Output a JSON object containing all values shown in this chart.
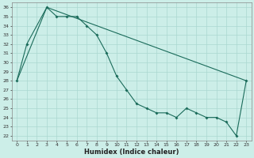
{
  "xlabel": "Humidex (Indice chaleur)",
  "bg_color": "#cceee8",
  "grid_color": "#aad8d0",
  "line_color": "#1a6b5a",
  "xlim": [
    -0.5,
    23.5
  ],
  "ylim": [
    21.5,
    36.5
  ],
  "xtick_labels": [
    "0",
    "1",
    "2",
    "3",
    "4",
    "5",
    "6",
    "7",
    "8",
    "9",
    "10",
    "11",
    "12",
    "13",
    "14",
    "15",
    "16",
    "17",
    "18",
    "19",
    "20",
    "21",
    "22",
    "23"
  ],
  "xticks": [
    0,
    1,
    2,
    3,
    4,
    5,
    6,
    7,
    8,
    9,
    10,
    11,
    12,
    13,
    14,
    15,
    16,
    17,
    18,
    19,
    20,
    21,
    22,
    23
  ],
  "yticks": [
    22,
    23,
    24,
    25,
    26,
    27,
    28,
    29,
    30,
    31,
    32,
    33,
    34,
    35,
    36
  ],
  "smooth_line_x": [
    0,
    3,
    23
  ],
  "smooth_line_y": [
    28,
    36,
    28
  ],
  "jagged_x": [
    0,
    1,
    3,
    4,
    5,
    6,
    7,
    8,
    9,
    10,
    11,
    12,
    13,
    14,
    15,
    16,
    17,
    18,
    19,
    20,
    21,
    22,
    23
  ],
  "jagged_y": [
    28,
    32,
    36,
    35,
    35,
    35,
    34,
    33,
    31,
    28.5,
    27,
    25.5,
    25,
    24.5,
    24.5,
    24,
    25,
    24.5,
    24,
    24,
    23.5,
    22,
    28
  ]
}
